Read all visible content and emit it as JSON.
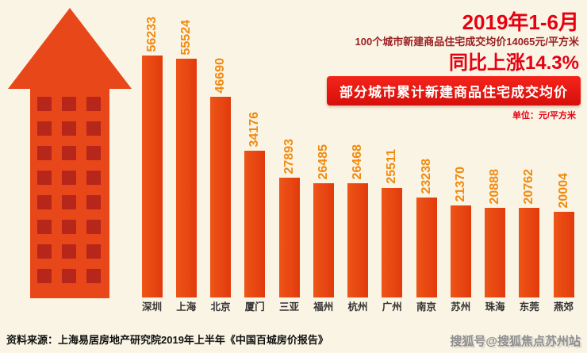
{
  "header": {
    "title": "2019年1-6月",
    "subtitle": "100个城市新建商品住宅成交均价14065元/平方米",
    "growth": "同比上涨14.3%",
    "banner": "部分城市累计新建商品住宅成交均价",
    "unit_label": "单位：元/平方米"
  },
  "chart_data": {
    "type": "bar",
    "title": "部分城市累计新建商品住宅成交均价",
    "unit": "元/平方米",
    "categories": [
      "深圳",
      "上海",
      "北京",
      "厦门",
      "三亚",
      "福州",
      "杭州",
      "广州",
      "南京",
      "苏州",
      "珠海",
      "东莞",
      "燕郊"
    ],
    "values": [
      56233,
      55524,
      46690,
      34176,
      27893,
      26485,
      26468,
      25511,
      23238,
      21370,
      20888,
      20762,
      20004
    ],
    "ylim": [
      0,
      56233
    ],
    "grid": false,
    "legend": "none",
    "value_labels": "rotated-90-above-bars"
  },
  "footer": {
    "source": "资料来源：上海易居房地产研究院2019年上半年《中国百城房价报告》",
    "watermark": "搜狐号@搜狐焦点苏州站"
  },
  "icons": {
    "building": "building-arrow-icon"
  },
  "colors": {
    "background": "#faf4e4",
    "accent_red": "#e60012",
    "dark_red_text": "#9a2022",
    "bar_start": "#ee5517",
    "bar_end": "#e23a0d",
    "value_label": "#f18a10",
    "building": "#e8471a",
    "building_window": "#b7261a",
    "city_label": "#333333",
    "source_text": "#111111",
    "watermark": "#8f8f8f"
  }
}
